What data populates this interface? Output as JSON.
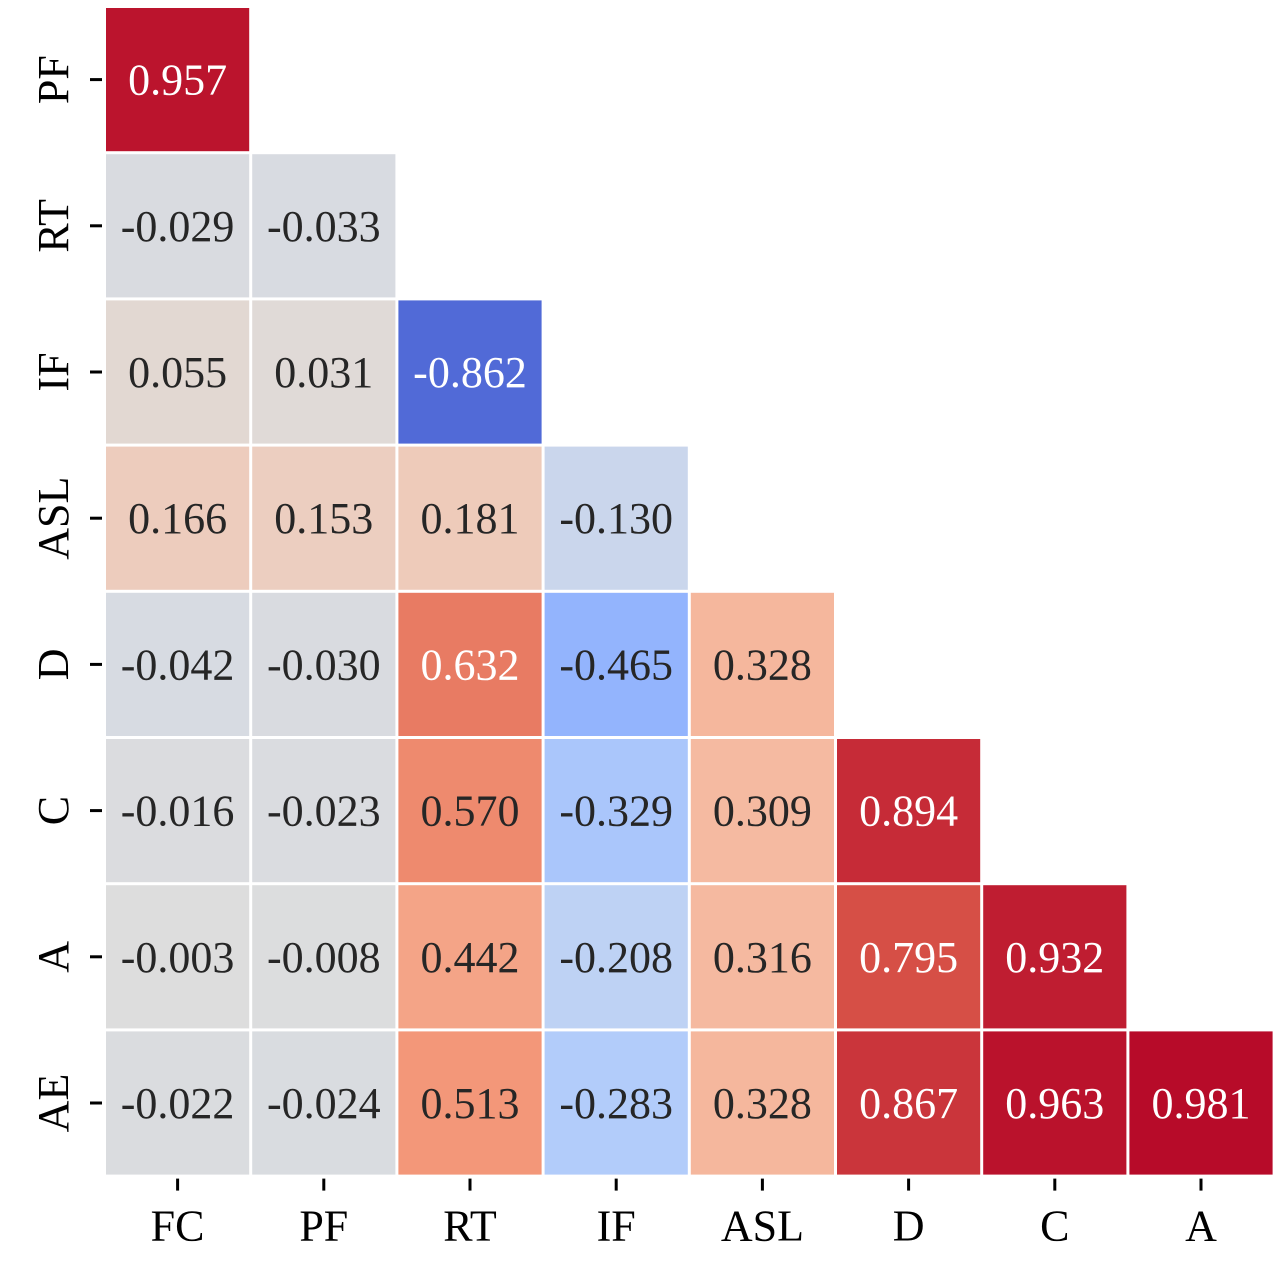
{
  "chart_data": {
    "type": "heatmap",
    "title": "",
    "xlabel": "",
    "ylabel": "",
    "x_labels": [
      "FC",
      "PF",
      "RT",
      "IF",
      "ASL",
      "D",
      "C",
      "A"
    ],
    "y_labels": [
      "PF",
      "RT",
      "IF",
      "ASL",
      "D",
      "C",
      "A",
      "AE"
    ],
    "values": [
      [
        0.957,
        null,
        null,
        null,
        null,
        null,
        null,
        null
      ],
      [
        -0.029,
        -0.033,
        null,
        null,
        null,
        null,
        null,
        null
      ],
      [
        0.055,
        0.031,
        -0.862,
        null,
        null,
        null,
        null,
        null
      ],
      [
        0.166,
        0.153,
        0.181,
        -0.13,
        null,
        null,
        null,
        null
      ],
      [
        -0.042,
        -0.03,
        0.632,
        -0.465,
        0.328,
        null,
        null,
        null
      ],
      [
        -0.016,
        -0.023,
        0.57,
        -0.329,
        0.309,
        0.894,
        null,
        null
      ],
      [
        -0.003,
        -0.008,
        0.442,
        -0.208,
        0.316,
        0.795,
        0.932,
        null
      ],
      [
        -0.022,
        -0.024,
        0.513,
        -0.283,
        0.328,
        0.867,
        0.963,
        0.981
      ]
    ],
    "value_range": [
      -1,
      1
    ],
    "colormap": "coolwarm",
    "colorbar": false,
    "grid": false
  }
}
